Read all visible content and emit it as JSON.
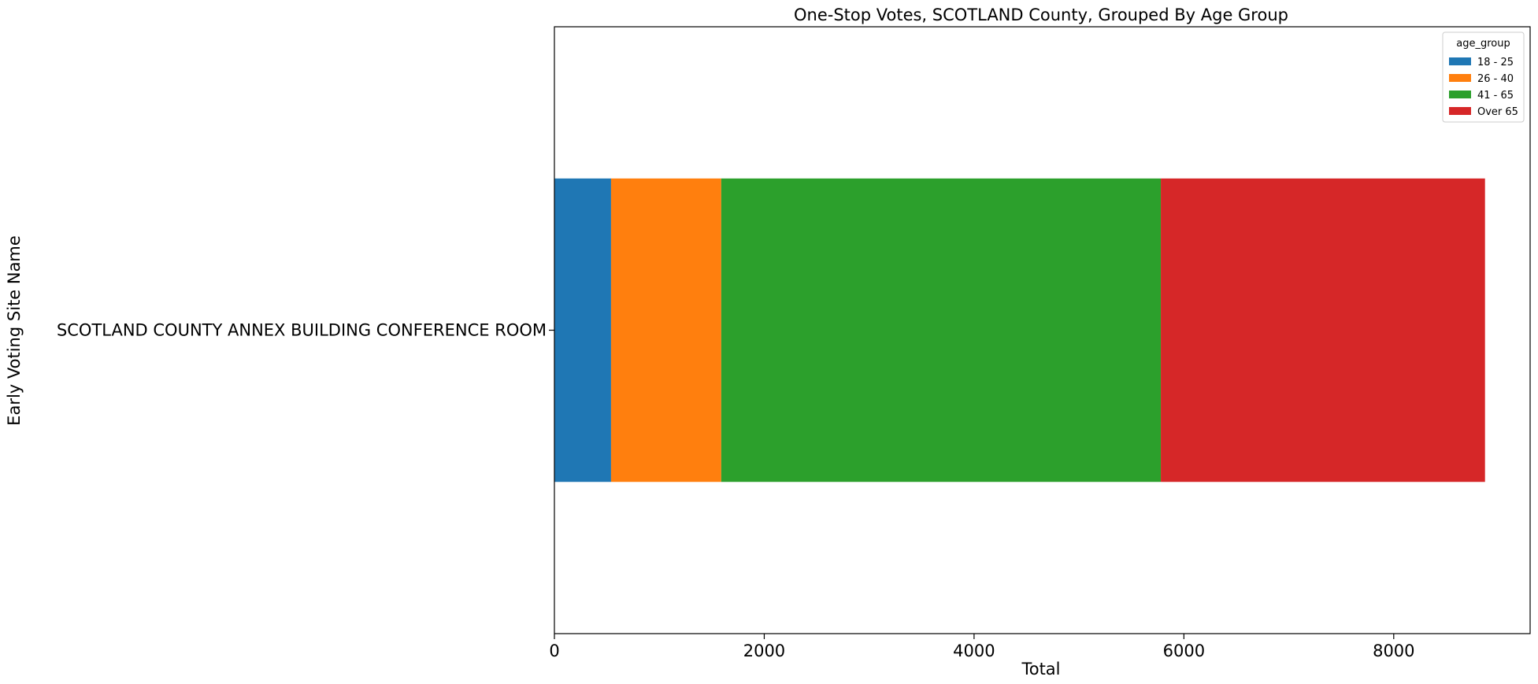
{
  "chart_data": {
    "type": "bar",
    "orientation": "horizontal",
    "stacked": true,
    "title": "One-Stop Votes, SCOTLAND County, Grouped By Age Group",
    "xlabel": "Total",
    "ylabel": "Early Voting Site Name",
    "categories": [
      "SCOTLAND COUNTY ANNEX BUILDING CONFERENCE ROOM"
    ],
    "series": [
      {
        "name": "18 - 25",
        "color": "#1f77b4",
        "values": [
          540
        ]
      },
      {
        "name": "26 - 40",
        "color": "#ff7f0e",
        "values": [
          1050
        ]
      },
      {
        "name": "41 - 65",
        "color": "#2ca02c",
        "values": [
          4190
        ]
      },
      {
        "name": "Over 65",
        "color": "#d62728",
        "values": [
          3090
        ]
      }
    ],
    "xlim": [
      0,
      9300
    ],
    "xticks": [
      0,
      2000,
      4000,
      6000,
      8000
    ],
    "grid": false,
    "legend": {
      "title": "age_group",
      "placement": "top-right"
    }
  }
}
